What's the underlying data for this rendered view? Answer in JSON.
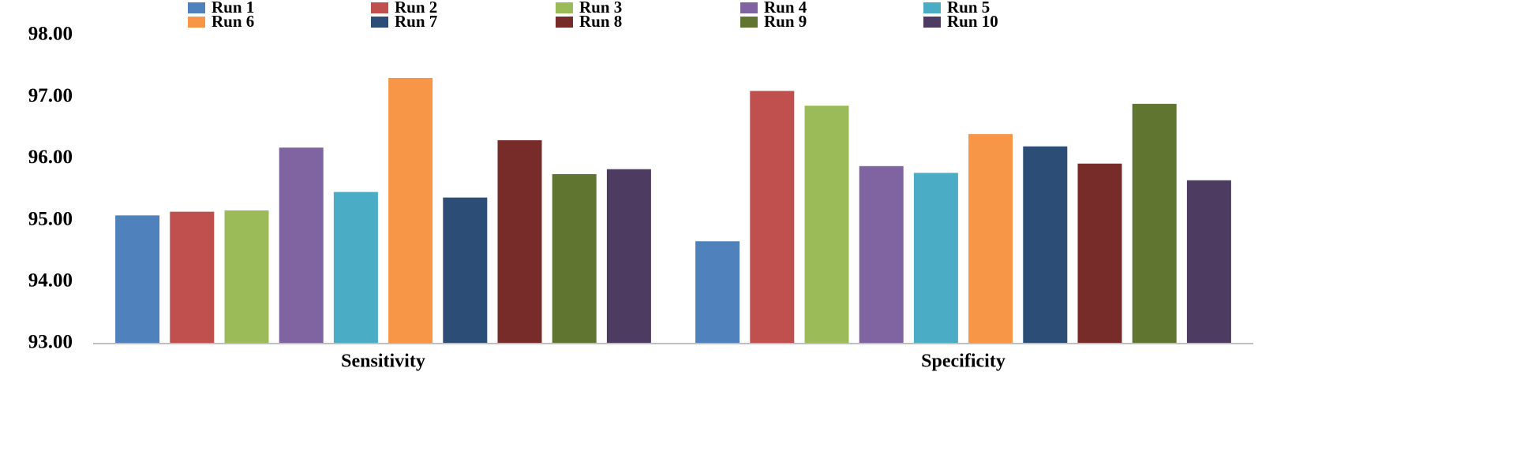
{
  "chart_data": {
    "type": "bar",
    "categories": [
      "Sensitivity",
      "Specificity"
    ],
    "series": [
      {
        "name": "Run 1",
        "color": "#4f81bd",
        "values": [
          95.08,
          94.66
        ]
      },
      {
        "name": "Run 2",
        "color": "#c0504d",
        "values": [
          95.14,
          97.1
        ]
      },
      {
        "name": "Run 3",
        "color": "#9bbb59",
        "values": [
          95.16,
          96.86
        ]
      },
      {
        "name": "Run 4",
        "color": "#8064a2",
        "values": [
          96.18,
          95.88
        ]
      },
      {
        "name": "Run 5",
        "color": "#4bacc6",
        "values": [
          95.46,
          95.77
        ]
      },
      {
        "name": "Run 6",
        "color": "#f79646",
        "values": [
          97.31,
          96.4
        ]
      },
      {
        "name": "Run 7",
        "color": "#2c4d75",
        "values": [
          95.37,
          96.2
        ]
      },
      {
        "name": "Run 8",
        "color": "#772c2a",
        "values": [
          96.3,
          95.92
        ]
      },
      {
        "name": "Run 9",
        "color": "#5f7530",
        "values": [
          95.75,
          96.89
        ]
      },
      {
        "name": "Run 10",
        "color": "#4d3b62",
        "values": [
          95.83,
          95.65
        ]
      }
    ],
    "ylim": [
      93,
      98
    ],
    "yticks": [
      {
        "value": 93,
        "label": "93.00"
      },
      {
        "value": 94,
        "label": "94.00"
      },
      {
        "value": 95,
        "label": "95.00"
      },
      {
        "value": 96,
        "label": "96.00"
      },
      {
        "value": 97,
        "label": "97.00"
      },
      {
        "value": 98,
        "label": "98.00"
      }
    ],
    "grid": false,
    "legend": "top"
  }
}
